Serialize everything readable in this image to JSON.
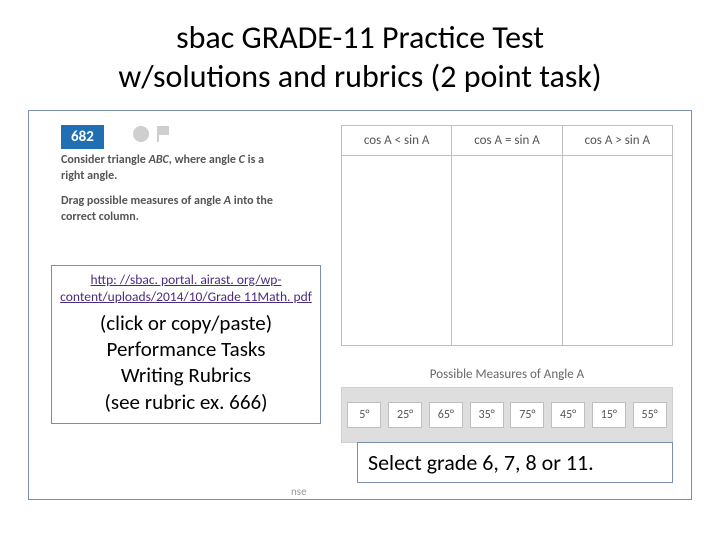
{
  "title": {
    "line1": "sbac GRADE-11 Practice Test",
    "line2": "w/solutions and rubrics (2 point task)"
  },
  "question": {
    "number": "682",
    "p1_pre": "Consider triangle ",
    "p1_abc": "ABC",
    "p1_mid": ", where angle ",
    "p1_c": "C",
    "p1_post": " is a right angle.",
    "p2_pre": "Drag possible measures of angle ",
    "p2_a": "A",
    "p2_post": " into the correct column."
  },
  "columns": {
    "h1": "cos A < sin A",
    "h2": "cos A = sin A",
    "h3": "cos A > sin A"
  },
  "measures": {
    "label": "Possible Measures of Angle A",
    "chips": [
      "5°",
      "25°",
      "65°",
      "35°",
      "75°",
      "45°",
      "15°",
      "55°"
    ],
    "row_bg": "#dedede",
    "chip_bg": "#ffffff"
  },
  "link": {
    "text": "http: //sbac. portal. airast. org/wp-content/uploads/2014/10/Grade 11Math. pdf"
  },
  "sub": {
    "l1": "(click or copy/paste)",
    "l2": "Performance Tasks",
    "l3": "Writing Rubrics",
    "l4": "(see rubric ex. 666)"
  },
  "grade_note": "Select grade 6, 7, 8 or 11.",
  "stub": "nse",
  "colors": {
    "frame_border": "#7a8fb0",
    "qnum_bg": "#1f6fb2",
    "link_color": "#4a2c7d"
  }
}
